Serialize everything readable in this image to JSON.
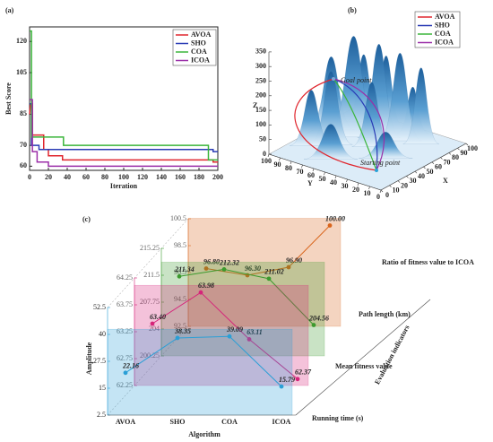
{
  "chart_data": [
    {
      "type": "line",
      "title": "(a)",
      "xlabel": "Iteration",
      "ylabel": "Best Score",
      "xlim": [
        0,
        200
      ],
      "xticks": [
        0,
        20,
        40,
        60,
        80,
        100,
        120,
        140,
        160,
        180,
        200
      ],
      "ylim": [
        58,
        127
      ],
      "yticks": [
        60,
        70,
        85,
        105,
        120
      ],
      "series": [
        {
          "name": "AVOA",
          "color": "#e0262e",
          "x": [
            0,
            1,
            3,
            3,
            15,
            15,
            20,
            20,
            35,
            35,
            195,
            195,
            200
          ],
          "values": [
            85,
            90,
            90,
            75,
            75,
            68,
            68,
            65,
            65,
            63,
            63,
            62,
            62
          ]
        },
        {
          "name": "SHO",
          "color": "#2a3bb5",
          "x": [
            0,
            2,
            2,
            10,
            10,
            195,
            195,
            200
          ],
          "values": [
            90,
            90,
            70,
            70,
            68,
            68,
            67,
            67
          ]
        },
        {
          "name": "COA",
          "color": "#3ab53a",
          "x": [
            0,
            2,
            2,
            36,
            36,
            190,
            190,
            200
          ],
          "values": [
            125,
            125,
            74,
            74,
            70,
            70,
            63,
            63
          ]
        },
        {
          "name": "ICOA",
          "color": "#9b2fa8",
          "x": [
            0,
            3,
            3,
            8,
            8,
            20,
            20,
            200
          ],
          "values": [
            92,
            92,
            67,
            67,
            62,
            62,
            60,
            60
          ]
        }
      ]
    },
    {
      "type": "surface3d",
      "title": "(b)",
      "xlabel": "X",
      "ylabel": "Y",
      "zlabel": "Z",
      "xlim": [
        0,
        100
      ],
      "xticks": [
        0,
        10,
        20,
        30,
        40,
        50,
        60,
        70,
        80,
        90,
        100
      ],
      "ylim": [
        0,
        100
      ],
      "yticks": [
        0,
        10,
        20,
        30,
        40,
        50,
        60,
        70,
        80,
        90,
        100
      ],
      "zlim": [
        0,
        350
      ],
      "zticks": [
        0,
        50,
        100,
        150,
        200,
        250,
        300,
        350
      ],
      "annotations": [
        "Goal point",
        "Starting point"
      ],
      "series": [
        {
          "name": "AVOA",
          "color": "#e0262e"
        },
        {
          "name": "SHO",
          "color": "#2a3bb5"
        },
        {
          "name": "COA",
          "color": "#3ab53a"
        },
        {
          "name": "ICOA",
          "color": "#9b2fa8"
        }
      ]
    },
    {
      "type": "line3d",
      "title": "(c)",
      "xlabel": "Algorithm",
      "ylabel": "Amplitude",
      "zlabel": "Evaluation indicators",
      "categories": [
        "AVOA",
        "SHO",
        "COA",
        "ICOA"
      ],
      "series": [
        {
          "name": "Running time (s)",
          "color": "#2a9fd6",
          "values": [
            22.16,
            38.35,
            39.09,
            15.79
          ],
          "value_labels": [
            "22.16",
            "38.35",
            "39.09",
            "15.79"
          ],
          "ylim": [
            2.5,
            52.5
          ],
          "yticks": [
            2.5,
            15,
            27.5,
            40,
            52.5
          ]
        },
        {
          "name": "Mean fitness value",
          "color": "#d6247a",
          "values": [
            63.4,
            63.98,
            63.11,
            62.37
          ],
          "value_labels": [
            "63.40",
            "63.98",
            "63.11",
            "62.37"
          ],
          "ylim": [
            62.25,
            64.25
          ],
          "yticks": [
            62.25,
            62.75,
            63.25,
            63.75,
            64.25
          ]
        },
        {
          "name": "Path length (km)",
          "color": "#3c9a2e",
          "values": [
            211.34,
            212.32,
            211.02,
            204.56
          ],
          "value_labels": [
            "211.34",
            "212.32",
            "211.02",
            "204.56"
          ],
          "ylim": [
            200.25,
            215.25
          ],
          "yticks": [
            200.25,
            204,
            207.75,
            211.5,
            215.25
          ]
        },
        {
          "name": "Ratio of fitness value to ICOA",
          "color": "#d9651c",
          "values": [
            96.8,
            96.3,
            96.9,
            100
          ],
          "value_labels": [
            "96.80",
            "96.30",
            "96.90",
            "100.00"
          ],
          "ylim": [
            92.5,
            100.5
          ],
          "yticks": [
            92.5,
            94.5,
            96.5,
            98.5,
            100.5
          ]
        }
      ]
    }
  ]
}
